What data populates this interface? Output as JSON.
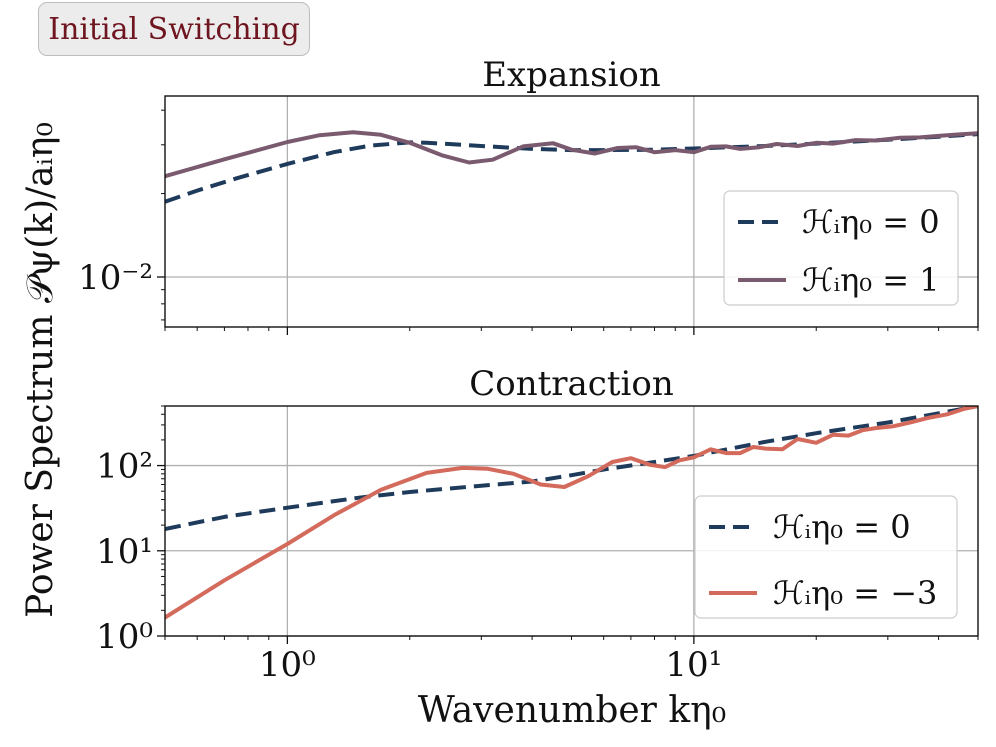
{
  "badge": {
    "label": "Initial Switching"
  },
  "figure": {
    "ylabel": "Power Spectrum 𝒫ψ(k)/aᵢη₀",
    "xlabel": "Wavenumber kη₀"
  },
  "colors": {
    "dashed": "#1f3b5c",
    "expansion_solid": "#7a5a6e",
    "contraction_solid": "#d36a5c",
    "badge_text": "#6e1520",
    "grid": "#b0b0b0"
  },
  "chart_data": [
    {
      "type": "line",
      "title": "Expansion",
      "xscale": "log",
      "yscale": "log",
      "xlim": [
        0.5,
        50
      ],
      "ylim": [
        0.0066,
        0.045
      ],
      "x_ticks": [
        {
          "value": 1,
          "label": "10⁰"
        },
        {
          "value": 10,
          "label": "10¹"
        }
      ],
      "y_ticks": [
        {
          "value": 0.01,
          "label": "10⁻²"
        }
      ],
      "legend": {
        "location": "lower-right",
        "entries": [
          "ℋᵢη₀ = 0",
          "ℋᵢη₀ = 1"
        ]
      },
      "series": [
        {
          "name": "ℋᵢη₀ = 0",
          "style": "dashed",
          "x": [
            0.5,
            0.6,
            0.75,
            1.0,
            1.3,
            1.6,
            2.0,
            2.2,
            2.5,
            3.0,
            4.0,
            5.0,
            6.0,
            8.0,
            10.0,
            15.0,
            20.0,
            30.0,
            40.0,
            50.0
          ],
          "y": [
            0.0187,
            0.0205,
            0.0227,
            0.0256,
            0.0282,
            0.0298,
            0.0306,
            0.0305,
            0.0302,
            0.0297,
            0.029,
            0.0287,
            0.0287,
            0.0288,
            0.0291,
            0.0297,
            0.0303,
            0.0313,
            0.0321,
            0.0328
          ]
        },
        {
          "name": "ℋᵢη₀ = 1",
          "style": "solid",
          "x": [
            0.5,
            0.7,
            1.0,
            1.2,
            1.45,
            1.7,
            2.0,
            2.4,
            2.8,
            3.2,
            3.8,
            4.5,
            5.0,
            5.7,
            6.5,
            7.2,
            8.0,
            9.0,
            10.0,
            11.0,
            12.0,
            13.0,
            14.5,
            16.0,
            18.0,
            20.0,
            22.0,
            25.0,
            28.0,
            32.0,
            36.0,
            40.0,
            45.0,
            50.0
          ],
          "y": [
            0.0231,
            0.0266,
            0.0307,
            0.0325,
            0.0333,
            0.0326,
            0.0305,
            0.0275,
            0.0259,
            0.0265,
            0.0296,
            0.0304,
            0.0288,
            0.0279,
            0.0292,
            0.0294,
            0.0282,
            0.0287,
            0.0282,
            0.0295,
            0.0296,
            0.029,
            0.0294,
            0.0302,
            0.0297,
            0.0305,
            0.0303,
            0.0312,
            0.0311,
            0.0318,
            0.0319,
            0.0323,
            0.0327,
            0.033
          ]
        }
      ]
    },
    {
      "type": "line",
      "title": "Contraction",
      "xscale": "log",
      "yscale": "log",
      "xlim": [
        0.5,
        50
      ],
      "ylim": [
        1,
        500
      ],
      "x_ticks": [
        {
          "value": 1,
          "label": "10⁰"
        },
        {
          "value": 10,
          "label": "10¹"
        }
      ],
      "y_ticks": [
        {
          "value": 1,
          "label": "10⁰"
        },
        {
          "value": 10,
          "label": "10¹"
        },
        {
          "value": 100,
          "label": "10²"
        }
      ],
      "legend": {
        "location": "lower-right",
        "entries": [
          "ℋᵢη₀ = 0",
          "ℋᵢη₀ = −3"
        ]
      },
      "series": [
        {
          "name": "ℋᵢη₀ = 0",
          "style": "dashed",
          "x": [
            0.5,
            0.7,
            1.0,
            1.5,
            2.0,
            3.0,
            4.0,
            5.0,
            6.0,
            8.0,
            10.0,
            15.0,
            20.0,
            30.0,
            40.0,
            50.0
          ],
          "y": [
            18,
            25,
            32,
            42,
            49,
            58,
            65,
            77,
            90,
            110,
            130,
            190,
            240,
            320,
            410,
            500
          ]
        },
        {
          "name": "ℋᵢη₀ = −3",
          "style": "solid",
          "x": [
            0.5,
            0.7,
            1.0,
            1.3,
            1.7,
            2.2,
            2.7,
            3.1,
            3.6,
            4.2,
            4.8,
            5.5,
            6.3,
            7.0,
            7.8,
            8.5,
            9.2,
            10.0,
            11.0,
            12.0,
            13.0,
            14.0,
            15.0,
            16.5,
            18.0,
            20.0,
            22.0,
            24.0,
            26.0,
            28.0,
            31.0,
            34.0,
            38.0,
            42.0,
            46.0,
            50.0
          ],
          "y": [
            1.65,
            4.5,
            12,
            26,
            52,
            82,
            94,
            92,
            80,
            60,
            56,
            75,
            110,
            122,
            102,
            96,
            115,
            125,
            155,
            140,
            140,
            165,
            158,
            155,
            205,
            185,
            230,
            225,
            260,
            275,
            290,
            320,
            365,
            400,
            460,
            500
          ]
        }
      ]
    }
  ]
}
